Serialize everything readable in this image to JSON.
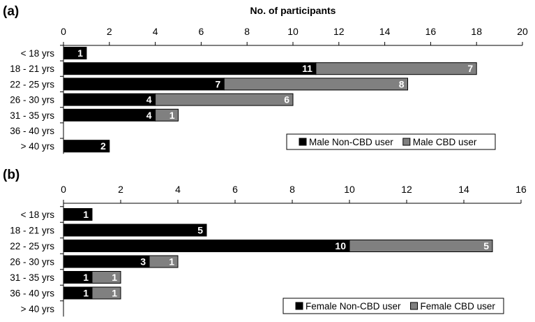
{
  "chart_data": [
    {
      "type": "bar",
      "orientation": "horizontal",
      "stacked": true,
      "panel_label": "(a)",
      "title": "No. of participants",
      "xlim": [
        0,
        20
      ],
      "x_ticks": [
        0,
        2,
        4,
        6,
        8,
        10,
        12,
        14,
        16,
        18,
        20
      ],
      "categories": [
        "< 18 yrs",
        "18 - 21 yrs",
        "22 - 25 yrs",
        "26 - 30 yrs",
        "31 - 35 yrs",
        "36 - 40 yrs",
        "> 40 yrs"
      ],
      "series": [
        {
          "name": "Male Non-CBD user",
          "color": "#000000",
          "values": [
            1,
            11,
            7,
            4,
            4,
            0,
            2
          ]
        },
        {
          "name": "Male CBD user",
          "color": "#808080",
          "values": [
            0,
            7,
            8,
            6,
            1,
            0,
            0
          ]
        }
      ],
      "legend_position": "bottom-right",
      "grid": false
    },
    {
      "type": "bar",
      "orientation": "horizontal",
      "stacked": true,
      "panel_label": "(b)",
      "title": "",
      "xlim": [
        0,
        16
      ],
      "x_ticks": [
        0,
        2,
        4,
        6,
        8,
        10,
        12,
        14,
        16
      ],
      "categories": [
        "< 18 yrs",
        "18 - 21 yrs",
        "22 - 25 yrs",
        "26 - 30 yrs",
        "31 - 35 yrs",
        "36 - 40 yrs",
        "> 40 yrs"
      ],
      "series": [
        {
          "name": "Female Non-CBD user",
          "color": "#000000",
          "values": [
            1,
            5,
            10,
            3,
            1,
            1,
            0
          ]
        },
        {
          "name": "Female CBD user",
          "color": "#808080",
          "values": [
            0,
            0,
            5,
            1,
            1,
            1,
            0
          ]
        }
      ],
      "legend_position": "bottom-right",
      "grid": false
    }
  ]
}
